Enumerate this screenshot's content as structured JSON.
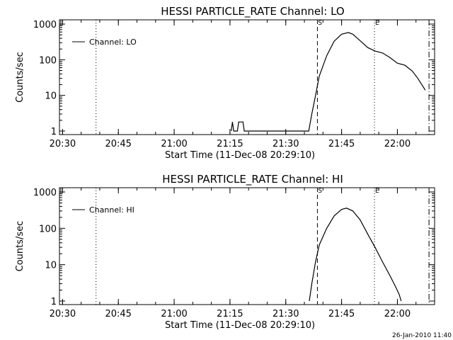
{
  "chart_data": [
    {
      "type": "line",
      "title": "HESSI PARTICLE_RATE Channel: LO",
      "xlabel": "Start Time (11-Dec-08 20:29:10)",
      "ylabel": "Counts/sec",
      "yscale": "log",
      "ylim": [
        1,
        1000
      ],
      "xlim": [
        "20:29:10",
        "22:10:00"
      ],
      "x_ticks": [
        "20:30",
        "20:45",
        "21:00",
        "21:15",
        "21:30",
        "21:45",
        "22:00"
      ],
      "y_ticks": [
        "1",
        "10",
        "100",
        "1000"
      ],
      "legend": "Channel: LO",
      "legend_position": "top-left",
      "markers": [
        {
          "label": "",
          "time": "20:39:00",
          "style": "dotted"
        },
        {
          "label": "S",
          "time": "21:38:30",
          "style": "dashed"
        },
        {
          "label": "E",
          "time": "21:53:50",
          "style": "dotted"
        },
        {
          "label": "",
          "time": "22:08:30",
          "style": "dashdot"
        }
      ],
      "series": [
        {
          "name": "Channel: LO",
          "points": [
            [
              "21:15:20",
              1
            ],
            [
              "21:15:40",
              1.8
            ],
            [
              "21:16:00",
              1
            ],
            [
              "21:17:00",
              1
            ],
            [
              "21:17:20",
              1.8
            ],
            [
              "21:18:30",
              1.8
            ],
            [
              "21:18:50",
              1
            ],
            [
              "21:36:10",
              1
            ],
            [
              "21:37:00",
              3
            ],
            [
              "21:38:00",
              10
            ],
            [
              "21:39:00",
              35
            ],
            [
              "21:41:00",
              130
            ],
            [
              "21:43:00",
              330
            ],
            [
              "21:45:00",
              520
            ],
            [
              "21:46:50",
              580
            ],
            [
              "21:48:00",
              520
            ],
            [
              "21:50:00",
              340
            ],
            [
              "21:52:00",
              220
            ],
            [
              "21:54:00",
              175
            ],
            [
              "21:56:00",
              155
            ],
            [
              "21:58:00",
              115
            ],
            [
              "22:00:00",
              80
            ],
            [
              "22:02:00",
              70
            ],
            [
              "22:04:00",
              48
            ],
            [
              "22:05:30",
              30
            ],
            [
              "22:07:30",
              14
            ]
          ]
        }
      ]
    },
    {
      "type": "line",
      "title": "HESSI PARTICLE_RATE Channel: HI",
      "xlabel": "Start Time (11-Dec-08 20:29:10)",
      "ylabel": "Counts/sec",
      "yscale": "log",
      "ylim": [
        1,
        1000
      ],
      "xlim": [
        "20:29:10",
        "22:10:00"
      ],
      "x_ticks": [
        "20:30",
        "20:45",
        "21:00",
        "21:15",
        "21:30",
        "21:45",
        "22:00"
      ],
      "y_ticks": [
        "1",
        "10",
        "100",
        "1000"
      ],
      "legend": "Channel: HI",
      "legend_position": "top-left",
      "markers": [
        {
          "label": "",
          "time": "20:39:00",
          "style": "dotted"
        },
        {
          "label": "S",
          "time": "21:38:30",
          "style": "dashed"
        },
        {
          "label": "E",
          "time": "21:53:50",
          "style": "dotted"
        },
        {
          "label": "",
          "time": "22:08:30",
          "style": "dashdot"
        }
      ],
      "series": [
        {
          "name": "Channel: HI",
          "points": [
            [
              "21:36:20",
              1
            ],
            [
              "21:37:00",
              3
            ],
            [
              "21:38:00",
              12
            ],
            [
              "21:39:00",
              35
            ],
            [
              "21:41:00",
              100
            ],
            [
              "21:43:00",
              220
            ],
            [
              "21:45:00",
              330
            ],
            [
              "21:46:20",
              360
            ],
            [
              "21:48:00",
              300
            ],
            [
              "21:50:00",
              170
            ],
            [
              "21:52:00",
              70
            ],
            [
              "21:54:00",
              30
            ],
            [
              "21:56:00",
              12
            ],
            [
              "21:58:00",
              5
            ],
            [
              "21:59:30",
              2.5
            ],
            [
              "22:00:30",
              1.5
            ],
            [
              "22:01:00",
              1
            ]
          ]
        }
      ]
    }
  ],
  "footer": {
    "timestamp": "26-Jan-2010 11:40"
  }
}
